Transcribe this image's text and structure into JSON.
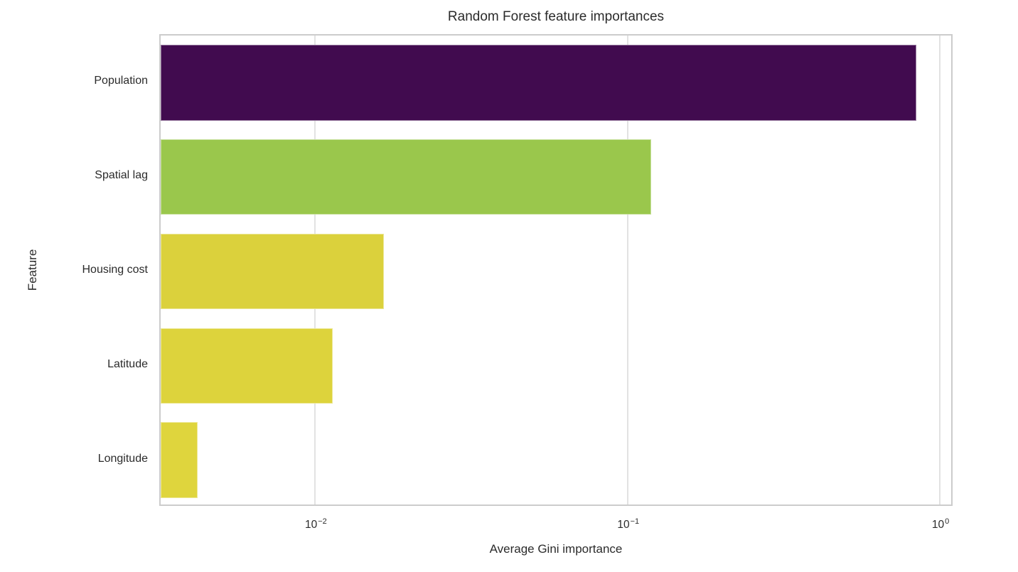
{
  "figure": {
    "title": "Random Forest feature importances",
    "xlabel": "Average Gini importance",
    "ylabel": "Feature"
  },
  "chart_data": {
    "type": "bar",
    "orientation": "horizontal",
    "title": "Random Forest feature importances",
    "xlabel": "Average Gini importance",
    "ylabel": "Feature",
    "x_scale": "log",
    "xlim": [
      0.0032,
      1.11
    ],
    "grid": "x-only",
    "legend": "none",
    "categories": [
      "Population",
      "Spatial lag",
      "Housing cost",
      "Latitude",
      "Longitude"
    ],
    "values": [
      0.84,
      0.119,
      0.0166,
      0.0114,
      0.0042
    ],
    "bar_colors": [
      "#410b4f",
      "#9ac74c",
      "#dbd13c",
      "#ddd33c",
      "#dfd53d"
    ],
    "x_ticks": [
      {
        "base": "10",
        "exponent": "−2",
        "value": 0.01
      },
      {
        "base": "10",
        "exponent": "−1",
        "value": 0.1
      },
      {
        "base": "10",
        "exponent": "0",
        "value": 1.0
      }
    ],
    "colors": {
      "background": "#ffffff",
      "spine": "#cccccc",
      "gridline": "#e2e2e2",
      "text": "#2b2b2b"
    }
  }
}
